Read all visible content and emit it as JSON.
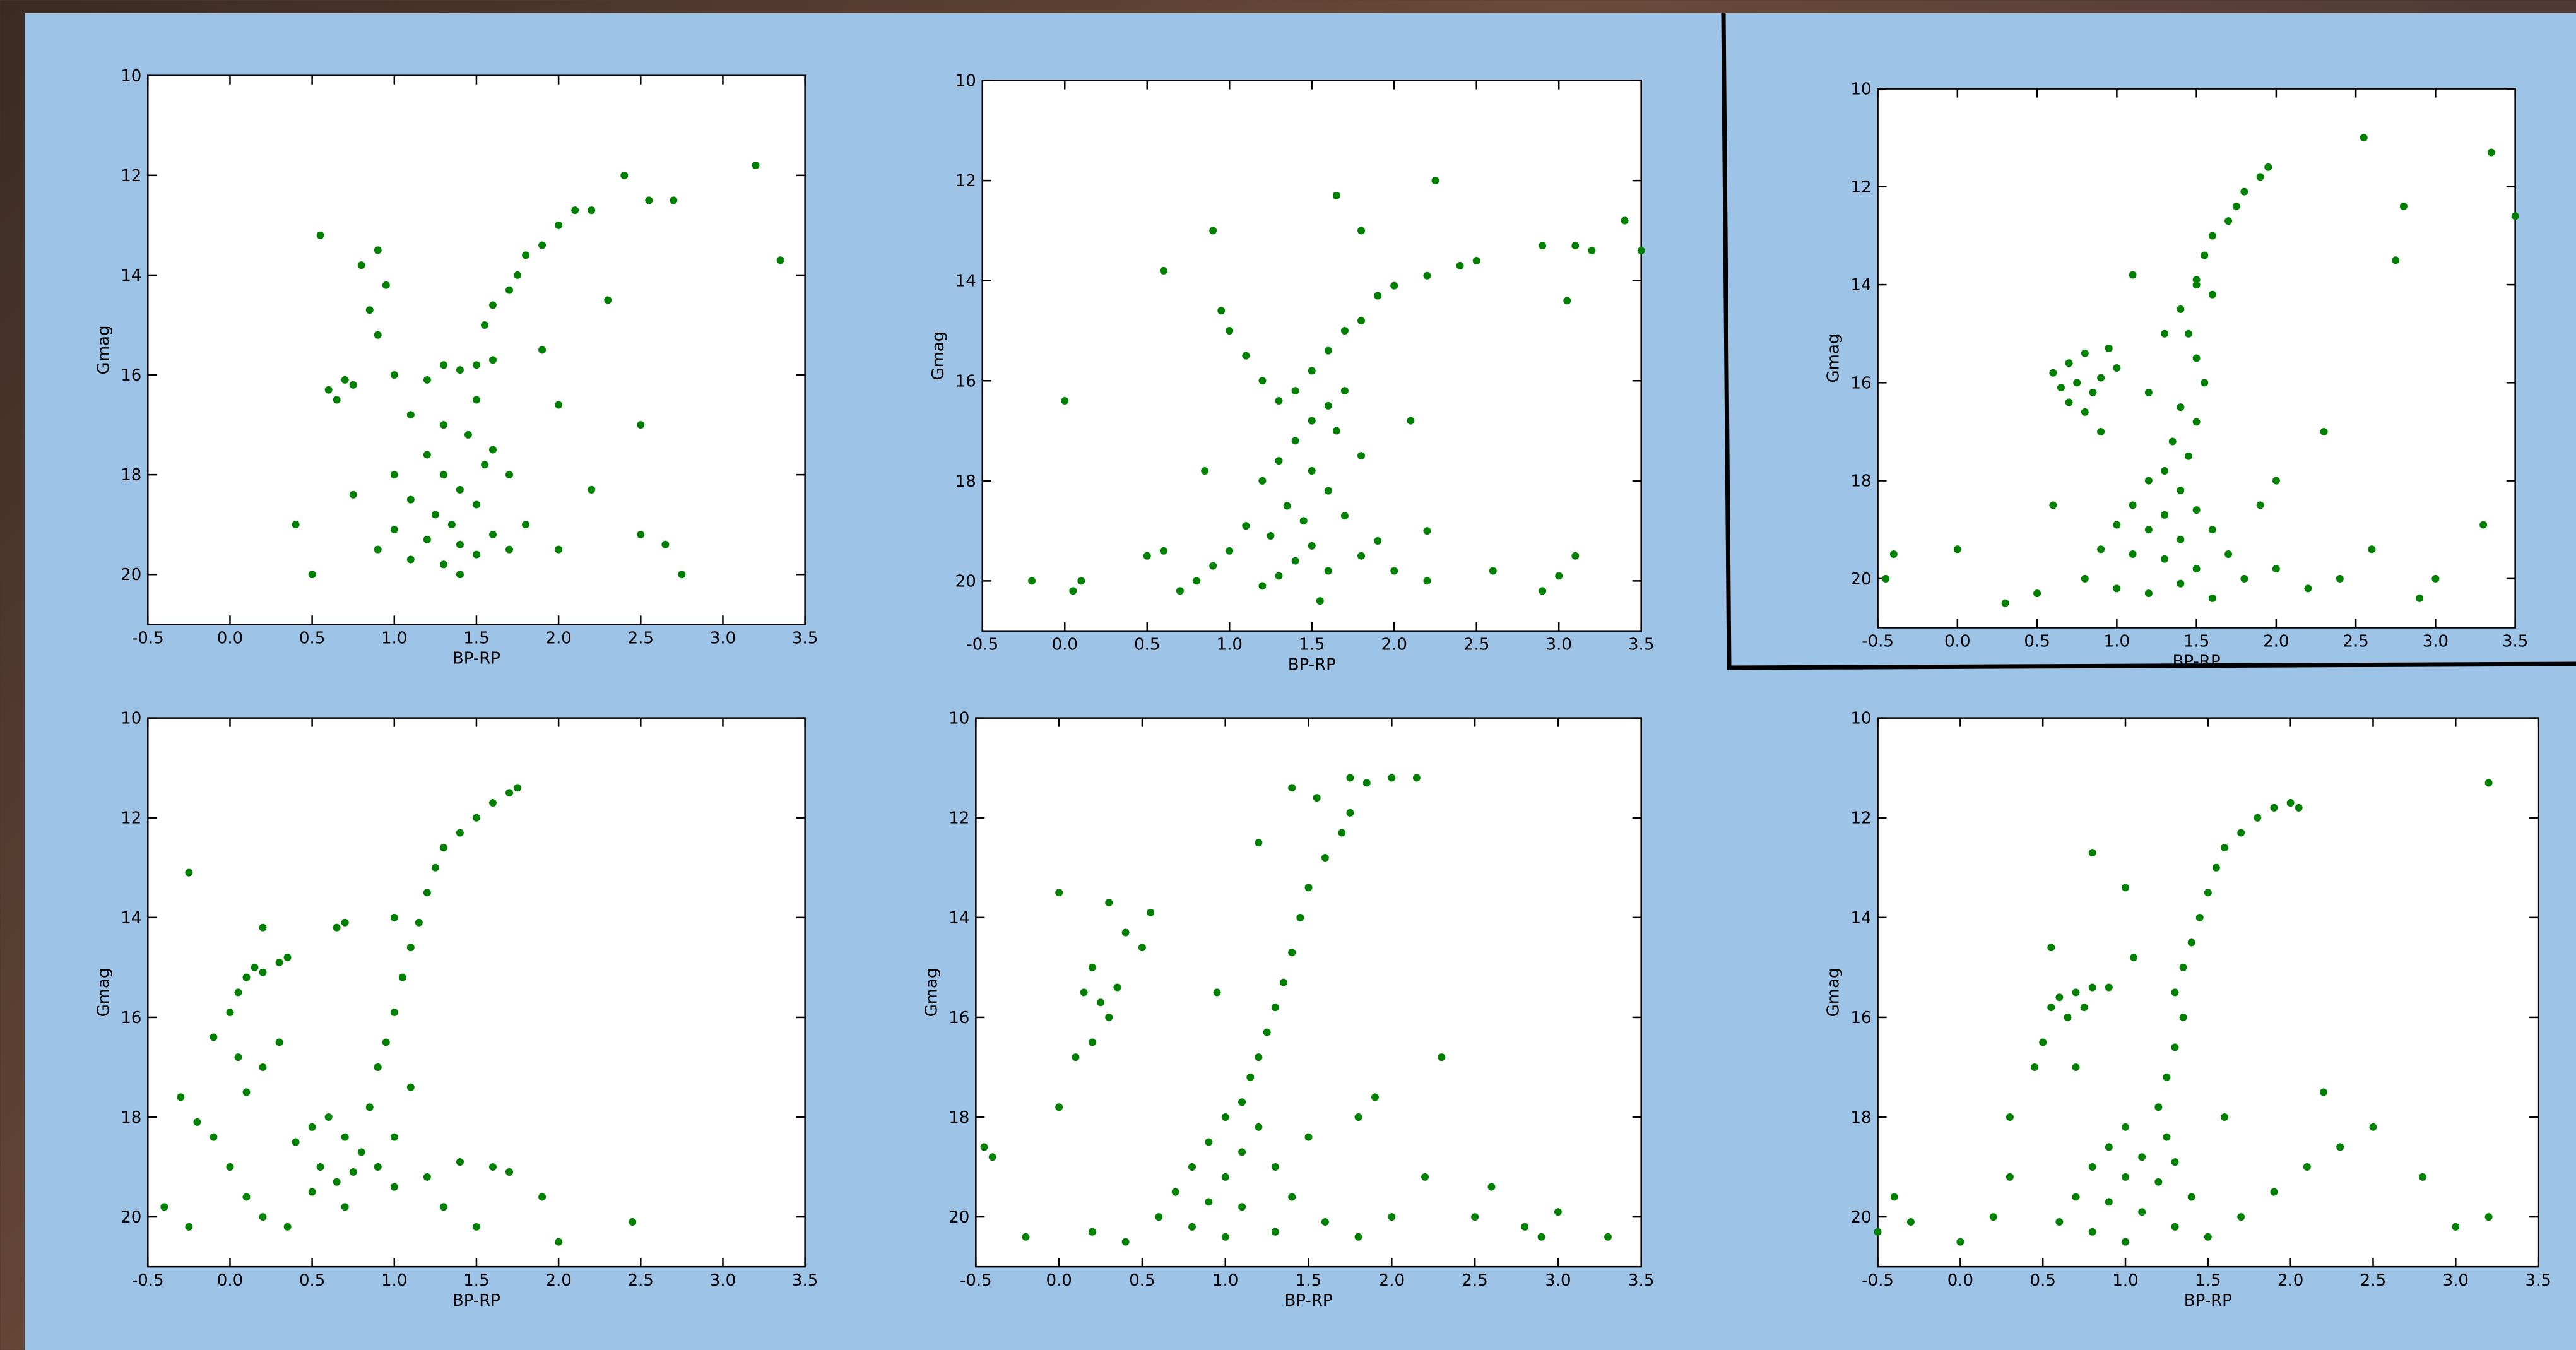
{
  "chart_data": [
    {
      "type": "scatter",
      "xlabel": "BP-RP",
      "ylabel": "Gmag",
      "xlim": [
        -0.5,
        3.5
      ],
      "ylim": [
        10,
        21
      ],
      "y_inverted": true,
      "xticks": [
        -0.5,
        {
          "value": 0,
          "label": "0.0"
        },
        0.5,
        {
          "value": 1,
          "label": "1.0"
        },
        1.5,
        {
          "value": 2,
          "label": "2.0"
        },
        2.5,
        {
          "value": 3,
          "label": "3.0"
        },
        3.5
      ],
      "yticks": [
        10,
        12,
        14,
        16,
        18,
        20
      ],
      "x": [
        0.55,
        0.8,
        0.9,
        0.95,
        0.85,
        0.9,
        0.6,
        0.7,
        0.65,
        0.75,
        1.0,
        1.2,
        1.3,
        1.4,
        1.5,
        1.6,
        1.55,
        1.6,
        1.7,
        1.75,
        1.8,
        1.9,
        2.0,
        2.1,
        2.2,
        2.4,
        2.55,
        2.7,
        3.2,
        3.35,
        2.3,
        1.9,
        2.0,
        2.5,
        2.2,
        1.1,
        1.3,
        1.5,
        1.45,
        1.6,
        1.2,
        1.3,
        1.4,
        1.1,
        1.5,
        1.25,
        1.35,
        1.0,
        1.2,
        1.4,
        1.6,
        0.9,
        1.1,
        1.3,
        1.5,
        1.7,
        1.8,
        2.0,
        0.4,
        0.5,
        2.5,
        2.65,
        2.75,
        1.4,
        1.0,
        1.7,
        0.75,
        1.55
      ],
      "series": [
        {
          "color": "#008000",
          "values": [
            13.2,
            13.8,
            13.5,
            14.2,
            14.7,
            15.2,
            16.3,
            16.1,
            16.5,
            16.2,
            16.0,
            16.1,
            15.8,
            15.9,
            15.8,
            15.7,
            15.0,
            14.6,
            14.3,
            14.0,
            13.6,
            13.4,
            13.0,
            12.7,
            12.7,
            12.0,
            12.5,
            12.5,
            11.8,
            13.7,
            14.5,
            15.5,
            16.6,
            17.0,
            18.3,
            16.8,
            17.0,
            16.5,
            17.2,
            17.5,
            17.6,
            18.0,
            18.3,
            18.5,
            18.6,
            18.8,
            19.0,
            19.1,
            19.3,
            19.4,
            19.2,
            19.5,
            19.7,
            19.8,
            19.6,
            19.5,
            19.0,
            19.5,
            19.0,
            20.0,
            19.2,
            19.4,
            20.0,
            20.0,
            18.0,
            18.0,
            18.4,
            17.8
          ]
        }
      ]
    },
    {
      "type": "scatter",
      "xlabel": "BP-RP",
      "ylabel": "Gmag",
      "xlim": [
        -0.5,
        3.5
      ],
      "ylim": [
        10,
        21
      ],
      "y_inverted": true,
      "xticks": [
        -0.5,
        {
          "value": 0,
          "label": "0.0"
        },
        0.5,
        {
          "value": 1,
          "label": "1.0"
        },
        1.5,
        {
          "value": 2,
          "label": "2.0"
        },
        2.5,
        {
          "value": 3,
          "label": "3.0"
        },
        3.5
      ],
      "yticks": [
        10,
        12,
        14,
        16,
        18,
        20
      ],
      "x": [
        0.0,
        0.05,
        0.1,
        -0.2,
        0.6,
        0.9,
        0.95,
        1.0,
        1.1,
        1.2,
        1.3,
        1.4,
        1.5,
        1.6,
        1.7,
        1.8,
        1.9,
        2.0,
        2.2,
        2.4,
        2.5,
        2.25,
        1.65,
        1.8,
        3.1,
        3.2,
        3.4,
        3.5,
        3.05,
        2.9,
        1.5,
        1.6,
        1.7,
        1.65,
        1.4,
        1.3,
        1.5,
        1.2,
        1.6,
        1.35,
        1.45,
        1.1,
        1.7,
        1.25,
        1.5,
        1.0,
        1.4,
        1.6,
        1.3,
        1.2,
        0.9,
        0.8,
        0.5,
        0.6,
        0.7,
        1.8,
        1.9,
        2.0,
        2.2,
        2.2,
        2.6,
        2.9,
        3.0,
        3.1,
        0.85,
        2.1,
        1.8,
        1.55
      ],
      "series": [
        {
          "color": "#008000",
          "values": [
            16.4,
            20.2,
            20.0,
            20.0,
            13.8,
            13.0,
            14.6,
            15.0,
            15.5,
            16.0,
            16.4,
            16.2,
            15.8,
            15.4,
            15.0,
            14.8,
            14.3,
            14.1,
            13.9,
            13.7,
            13.6,
            12.0,
            12.3,
            13.0,
            13.3,
            13.4,
            12.8,
            13.4,
            14.4,
            13.3,
            16.8,
            16.5,
            16.2,
            17.0,
            17.2,
            17.6,
            17.8,
            18.0,
            18.2,
            18.5,
            18.8,
            18.9,
            18.7,
            19.1,
            19.3,
            19.4,
            19.6,
            19.8,
            19.9,
            20.1,
            19.7,
            20.0,
            19.5,
            19.4,
            20.2,
            19.5,
            19.2,
            19.8,
            20.0,
            19.0,
            19.8,
            20.2,
            19.9,
            19.5,
            17.8,
            16.8,
            17.5,
            20.4
          ]
        }
      ]
    },
    {
      "type": "scatter",
      "xlabel": "BP-RP",
      "ylabel": "Gmag",
      "xlim": [
        -0.5,
        3.5
      ],
      "ylim": [
        10,
        21
      ],
      "y_inverted": true,
      "xticks": [
        -0.5,
        {
          "value": 0,
          "label": "0.0"
        },
        0.5,
        {
          "value": 1,
          "label": "1.0"
        },
        1.5,
        {
          "value": 2,
          "label": "2.0"
        },
        2.5,
        {
          "value": 3,
          "label": "3.0"
        },
        3.5
      ],
      "yticks": [
        10,
        12,
        14,
        16,
        18,
        20
      ],
      "x": [
        0.6,
        0.65,
        0.7,
        0.75,
        0.8,
        0.85,
        0.9,
        0.7,
        0.8,
        0.95,
        1.0,
        1.2,
        1.3,
        1.4,
        1.5,
        1.55,
        1.6,
        1.7,
        1.75,
        1.8,
        1.9,
        1.95,
        1.5,
        1.6,
        1.45,
        1.5,
        1.55,
        1.4,
        1.5,
        1.35,
        1.45,
        1.3,
        1.2,
        1.4,
        1.1,
        1.3,
        1.5,
        1.0,
        1.2,
        1.4,
        1.6,
        0.9,
        1.1,
        1.3,
        1.5,
        1.7,
        0.8,
        1.0,
        1.2,
        1.4,
        1.6,
        1.8,
        2.0,
        2.2,
        2.4,
        0.5,
        0.3,
        0.0,
        -0.45,
        -0.4,
        2.55,
        3.35,
        3.5,
        2.8,
        2.75,
        3.3,
        3.0,
        2.9,
        2.6,
        2.0,
        0.9,
        1.1,
        1.9,
        0.6,
        2.3
      ],
      "series": [
        {
          "color": "#008000",
          "values": [
            15.8,
            16.1,
            15.6,
            16.0,
            15.4,
            16.2,
            15.9,
            16.4,
            16.6,
            15.3,
            15.7,
            16.2,
            15.0,
            14.5,
            14.0,
            13.4,
            13.0,
            12.7,
            12.4,
            12.1,
            11.8,
            11.6,
            13.9,
            14.2,
            15.0,
            15.5,
            16.0,
            16.5,
            16.8,
            17.2,
            17.5,
            17.8,
            18.0,
            18.2,
            18.5,
            18.7,
            18.6,
            18.9,
            19.0,
            19.2,
            19.0,
            19.4,
            19.5,
            19.6,
            19.8,
            19.5,
            20.0,
            20.2,
            20.3,
            20.1,
            20.4,
            20.0,
            19.8,
            20.2,
            20.0,
            20.3,
            20.5,
            19.4,
            20.0,
            19.5,
            11.0,
            11.3,
            12.6,
            12.4,
            13.5,
            18.9,
            20.0,
            20.4,
            19.4,
            18.0,
            17.0,
            13.8,
            18.5,
            18.5,
            17.0
          ]
        }
      ]
    },
    {
      "type": "scatter",
      "xlabel": "BP-RP",
      "ylabel": "Gmag",
      "xlim": [
        -0.5,
        3.5
      ],
      "ylim": [
        10,
        21
      ],
      "y_inverted": true,
      "xticks": [
        -0.5,
        {
          "value": 0,
          "label": "0.0"
        },
        0.5,
        {
          "value": 1,
          "label": "1.0"
        },
        1.5,
        {
          "value": 2,
          "label": "2.0"
        },
        2.5,
        {
          "value": 3,
          "label": "3.0"
        },
        3.5
      ],
      "yticks": [
        10,
        12,
        14,
        16,
        18,
        20
      ],
      "x": [
        -0.25,
        -0.3,
        -0.2,
        -0.4,
        -0.25,
        -0.1,
        0.0,
        0.05,
        0.1,
        0.15,
        0.2,
        0.3,
        0.35,
        0.2,
        0.05,
        0.2,
        0.3,
        0.1,
        -0.1,
        0.0,
        0.1,
        0.2,
        0.4,
        0.5,
        0.6,
        0.7,
        0.8,
        0.55,
        0.65,
        0.75,
        0.9,
        0.5,
        0.7,
        1.0,
        1.2,
        1.4,
        1.6,
        1.7,
        1.0,
        0.85,
        0.9,
        0.95,
        1.0,
        1.05,
        1.1,
        1.15,
        1.2,
        1.25,
        1.3,
        1.4,
        1.5,
        1.6,
        1.7,
        1.75,
        0.7,
        1.0,
        0.65,
        1.9,
        2.0,
        2.45,
        1.3,
        1.5,
        0.35,
        1.1
      ],
      "series": [
        {
          "color": "#008000",
          "values": [
            13.1,
            17.6,
            18.1,
            19.8,
            20.2,
            16.4,
            15.9,
            15.5,
            15.2,
            15.0,
            15.1,
            14.9,
            14.8,
            14.2,
            16.8,
            17.0,
            16.5,
            17.5,
            18.4,
            19.0,
            19.6,
            20.0,
            18.5,
            18.2,
            18.0,
            18.4,
            18.7,
            19.0,
            19.3,
            19.1,
            19.0,
            19.5,
            19.8,
            19.4,
            19.2,
            18.9,
            19.0,
            19.1,
            18.4,
            17.8,
            17.0,
            16.5,
            15.9,
            15.2,
            14.6,
            14.1,
            13.5,
            13.0,
            12.6,
            12.3,
            12.0,
            11.7,
            11.5,
            11.4,
            14.1,
            14.0,
            14.2,
            19.6,
            20.5,
            20.1,
            19.8,
            20.2,
            20.2,
            17.4
          ]
        }
      ]
    },
    {
      "type": "scatter",
      "xlabel": "BP-RP",
      "ylabel": "Gmag",
      "xlim": [
        -0.5,
        3.5
      ],
      "ylim": [
        10,
        21
      ],
      "y_inverted": true,
      "xticks": [
        -0.5,
        {
          "value": 0,
          "label": "0.0"
        },
        0.5,
        {
          "value": 1,
          "label": "1.0"
        },
        1.5,
        {
          "value": 2,
          "label": "2.0"
        },
        2.5,
        {
          "value": 3,
          "label": "3.0"
        },
        3.5
      ],
      "yticks": [
        10,
        12,
        14,
        16,
        18,
        20
      ],
      "x": [
        0.0,
        0.3,
        0.55,
        0.4,
        0.5,
        0.2,
        0.35,
        0.25,
        0.15,
        0.3,
        0.2,
        0.1,
        0.0,
        -0.4,
        -0.45,
        1.4,
        1.55,
        1.75,
        1.85,
        2.0,
        2.15,
        1.75,
        1.7,
        1.6,
        1.5,
        1.45,
        1.4,
        1.35,
        1.3,
        1.25,
        1.2,
        1.15,
        1.1,
        1.0,
        1.2,
        0.9,
        1.1,
        0.8,
        1.0,
        1.3,
        0.7,
        0.9,
        1.1,
        1.4,
        0.6,
        0.8,
        1.0,
        1.3,
        1.6,
        1.8,
        2.0,
        0.4,
        0.2,
        -0.2,
        1.2,
        1.8,
        2.3,
        1.9,
        2.8,
        2.9,
        3.0,
        3.3,
        2.5,
        2.6,
        2.2,
        1.5,
        0.95
      ],
      "series": [
        {
          "color": "#008000",
          "values": [
            13.5,
            13.7,
            13.9,
            14.3,
            14.6,
            15.0,
            15.4,
            15.7,
            15.5,
            16.0,
            16.5,
            16.8,
            17.8,
            18.8,
            18.6,
            11.4,
            11.6,
            11.2,
            11.3,
            11.2,
            11.2,
            11.9,
            12.3,
            12.8,
            13.4,
            14.0,
            14.7,
            15.3,
            15.8,
            16.3,
            16.8,
            17.2,
            17.7,
            18.0,
            18.2,
            18.5,
            18.7,
            19.0,
            19.2,
            19.0,
            19.5,
            19.7,
            19.8,
            19.6,
            20.0,
            20.2,
            20.4,
            20.3,
            20.1,
            20.4,
            20.0,
            20.5,
            20.3,
            20.4,
            12.5,
            18.0,
            16.8,
            17.6,
            20.2,
            20.4,
            19.9,
            20.4,
            20.0,
            19.4,
            19.2,
            18.4,
            15.5
          ]
        }
      ]
    },
    {
      "type": "scatter",
      "xlabel": "BP-RP",
      "ylabel": "Gmag",
      "xlim": [
        -0.5,
        3.5
      ],
      "ylim": [
        10,
        21
      ],
      "y_inverted": true,
      "xticks": [
        -0.5,
        {
          "value": 0,
          "label": "0.0"
        },
        0.5,
        {
          "value": 1,
          "label": "1.0"
        },
        1.5,
        {
          "value": 2,
          "label": "2.0"
        },
        2.5,
        {
          "value": 3,
          "label": "3.0"
        },
        3.5
      ],
      "yticks": [
        10,
        12,
        14,
        16,
        18,
        20
      ],
      "x": [
        -0.5,
        -0.4,
        -0.3,
        0.0,
        0.2,
        0.3,
        0.45,
        0.5,
        0.55,
        0.6,
        0.7,
        0.75,
        0.8,
        0.9,
        0.65,
        0.55,
        0.8,
        1.0,
        1.05,
        1.3,
        1.35,
        1.4,
        1.45,
        1.5,
        1.55,
        1.6,
        1.7,
        1.8,
        1.9,
        2.0,
        2.05,
        1.35,
        1.3,
        1.25,
        1.2,
        1.0,
        1.25,
        0.9,
        1.1,
        1.3,
        0.8,
        1.0,
        1.2,
        0.7,
        0.9,
        1.1,
        1.4,
        0.6,
        0.8,
        1.0,
        1.3,
        1.5,
        1.7,
        1.9,
        2.1,
        2.3,
        2.5,
        2.8,
        3.0,
        3.2,
        3.2,
        1.6,
        0.7,
        2.2,
        0.3
      ],
      "series": [
        {
          "color": "#008000",
          "values": [
            20.3,
            19.6,
            20.1,
            20.5,
            20.0,
            19.2,
            17.0,
            16.5,
            15.8,
            15.6,
            15.5,
            15.8,
            15.4,
            15.4,
            16.0,
            14.6,
            12.7,
            13.4,
            14.8,
            15.5,
            15.0,
            14.5,
            14.0,
            13.5,
            13.0,
            12.6,
            12.3,
            12.0,
            11.8,
            11.7,
            11.8,
            16.0,
            16.6,
            17.2,
            17.8,
            18.2,
            18.4,
            18.6,
            18.8,
            18.9,
            19.0,
            19.2,
            19.3,
            19.6,
            19.7,
            19.9,
            19.6,
            20.1,
            20.3,
            20.5,
            20.2,
            20.4,
            20.0,
            19.5,
            19.0,
            18.6,
            18.2,
            19.2,
            20.2,
            20.0,
            11.3,
            18.0,
            17.0,
            17.5,
            18.0
          ]
        }
      ]
    }
  ]
}
